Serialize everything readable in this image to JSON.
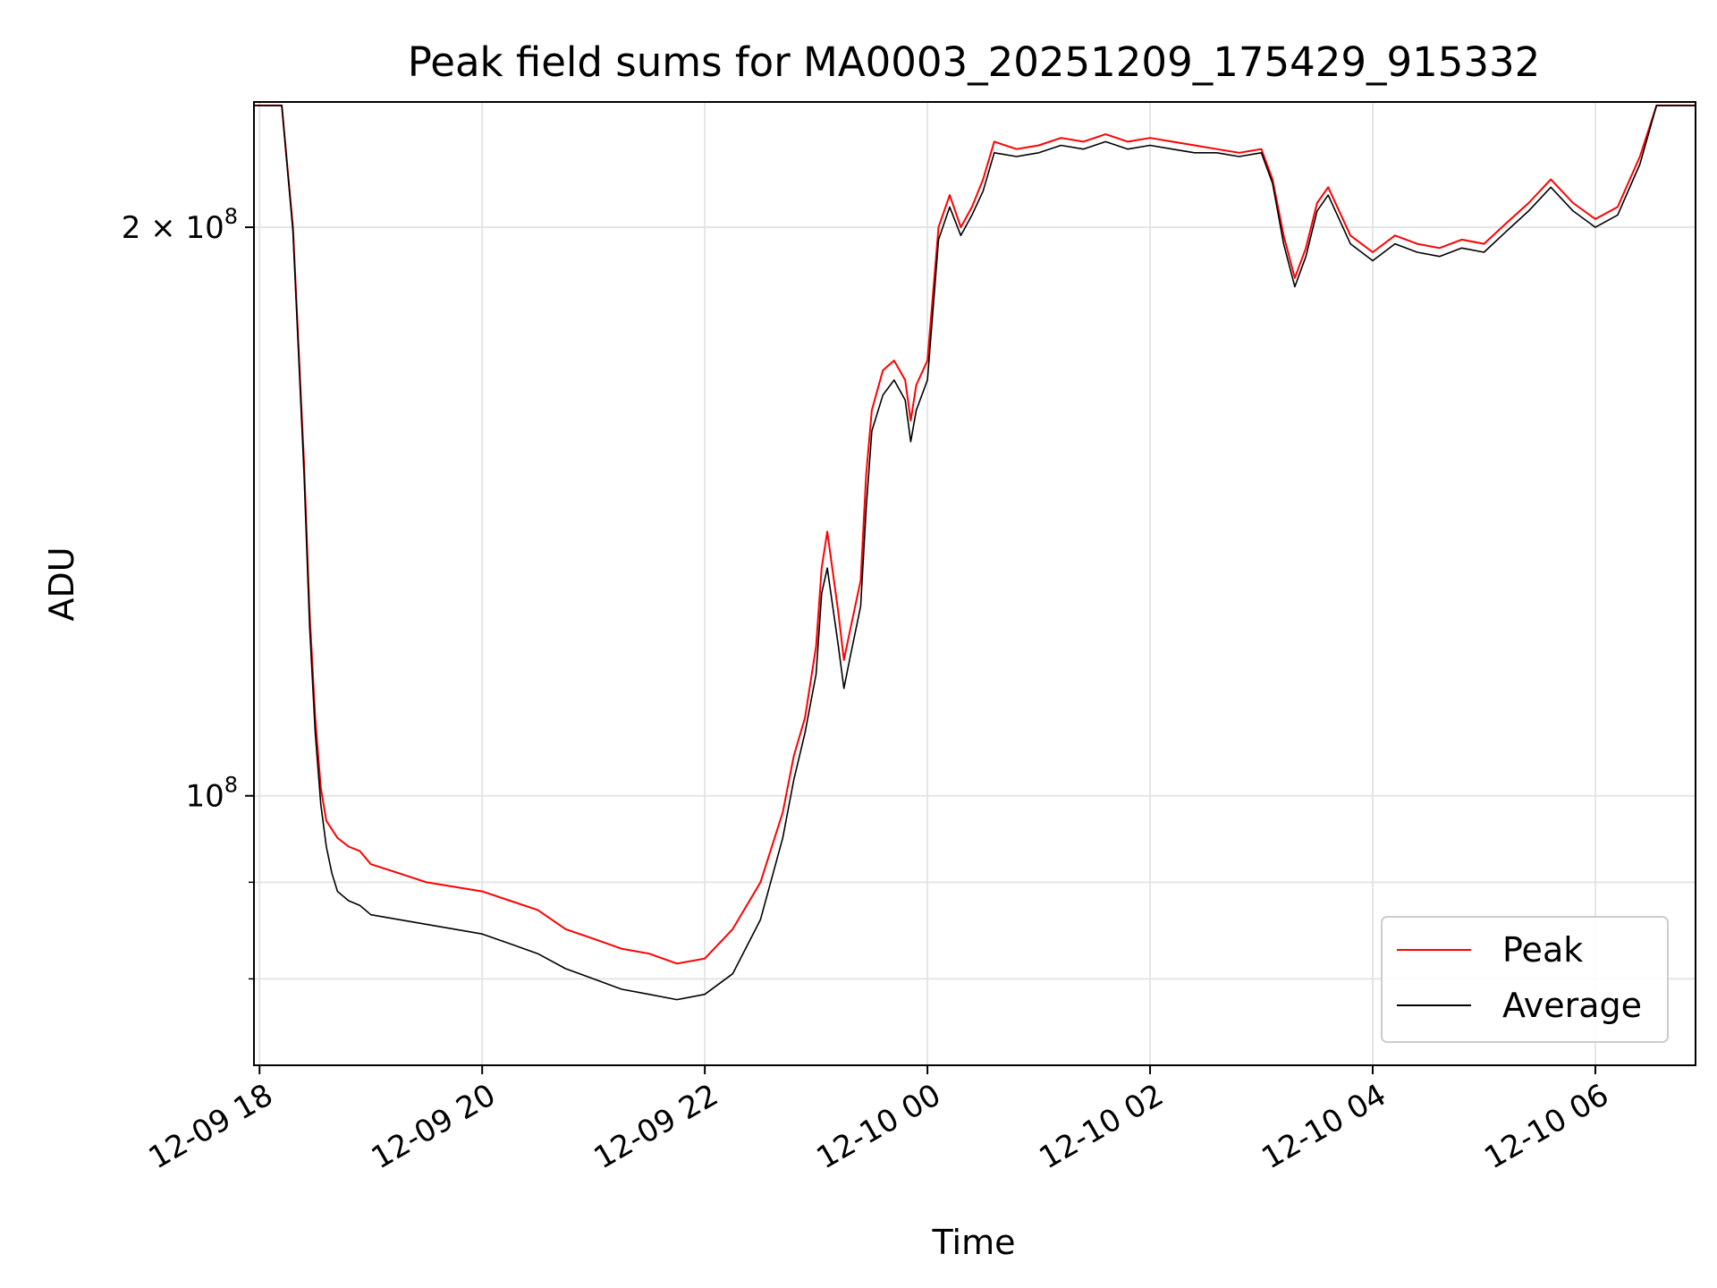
{
  "chart_data": {
    "type": "line",
    "title": "Peak field sums for MA0003_20251209_175429_915332",
    "xlabel": "Time",
    "ylabel": "ADU",
    "yscale": "log",
    "xlim": [
      17.95,
      30.9
    ],
    "ylim": [
      72000000,
      233000000
    ],
    "grid": true,
    "legend_position": "lower-right",
    "x_ticks": [
      {
        "value": 18,
        "label": "12-09 18"
      },
      {
        "value": 20,
        "label": "12-09 20"
      },
      {
        "value": 22,
        "label": "12-09 22"
      },
      {
        "value": 24,
        "label": "12-10 00"
      },
      {
        "value": 26,
        "label": "12-10 02"
      },
      {
        "value": 28,
        "label": "12-10 04"
      },
      {
        "value": 30,
        "label": "12-10 06"
      }
    ],
    "y_ticks": [
      {
        "value": 100000000,
        "base": "10",
        "exp": "8",
        "mantissa": ""
      },
      {
        "value": 200000000,
        "base": "10",
        "exp": "8",
        "mantissa": "2 × "
      }
    ],
    "y_minor_ticks": [
      80000000,
      90000000
    ],
    "x_unit_note": "hours from 2025-12-09 00:00",
    "series": [
      {
        "name": "Peak",
        "color": "#ff0000",
        "x": [
          17.95,
          18.1,
          18.2,
          18.3,
          18.4,
          18.45,
          18.5,
          18.55,
          18.6,
          18.65,
          18.7,
          18.8,
          18.9,
          19.0,
          19.25,
          19.5,
          19.75,
          20.0,
          20.25,
          20.5,
          20.75,
          21.0,
          21.25,
          21.5,
          21.75,
          22.0,
          22.25,
          22.5,
          22.7,
          22.8,
          22.9,
          23.0,
          23.05,
          23.1,
          23.2,
          23.25,
          23.3,
          23.4,
          23.45,
          23.5,
          23.6,
          23.7,
          23.8,
          23.85,
          23.9,
          24.0,
          24.1,
          24.2,
          24.3,
          24.4,
          24.5,
          24.6,
          24.8,
          25.0,
          25.2,
          25.4,
          25.6,
          25.8,
          26.0,
          26.2,
          26.4,
          26.6,
          26.8,
          27.0,
          27.1,
          27.2,
          27.3,
          27.4,
          27.5,
          27.6,
          27.8,
          28.0,
          28.2,
          28.4,
          28.6,
          28.8,
          29.0,
          29.2,
          29.4,
          29.6,
          29.8,
          30.0,
          30.2,
          30.4,
          30.55,
          30.7,
          30.9
        ],
        "values": [
          232000000,
          232000000,
          232000000,
          200000000,
          150000000,
          125000000,
          110000000,
          101000000,
          97000000,
          96000000,
          95000000,
          94000000,
          93500000,
          92000000,
          91000000,
          90000000,
          89500000,
          89000000,
          88000000,
          87000000,
          85000000,
          84000000,
          83000000,
          82500000,
          81500000,
          82000000,
          85000000,
          90000000,
          98000000,
          105000000,
          110000000,
          120000000,
          132000000,
          138000000,
          125000000,
          118000000,
          122000000,
          130000000,
          148000000,
          160000000,
          168000000,
          170000000,
          166000000,
          158000000,
          165000000,
          170000000,
          200000000,
          208000000,
          200000000,
          205000000,
          212000000,
          222000000,
          220000000,
          221000000,
          223000000,
          222000000,
          224000000,
          222000000,
          223000000,
          222000000,
          221000000,
          220000000,
          219000000,
          220000000,
          212000000,
          198000000,
          188000000,
          195000000,
          206000000,
          210000000,
          198000000,
          194000000,
          198000000,
          196000000,
          195000000,
          197000000,
          196000000,
          201000000,
          206000000,
          212000000,
          206000000,
          202000000,
          205000000,
          218000000,
          232000000,
          232000000,
          232000000
        ]
      },
      {
        "name": "Average",
        "color": "#000000",
        "x": [
          17.95,
          18.1,
          18.2,
          18.3,
          18.4,
          18.45,
          18.5,
          18.55,
          18.6,
          18.65,
          18.7,
          18.8,
          18.9,
          19.0,
          19.25,
          19.5,
          19.75,
          20.0,
          20.25,
          20.5,
          20.75,
          21.0,
          21.25,
          21.5,
          21.75,
          22.0,
          22.25,
          22.5,
          22.7,
          22.8,
          22.9,
          23.0,
          23.05,
          23.1,
          23.2,
          23.25,
          23.3,
          23.4,
          23.45,
          23.5,
          23.6,
          23.7,
          23.8,
          23.85,
          23.9,
          24.0,
          24.1,
          24.2,
          24.3,
          24.4,
          24.5,
          24.6,
          24.8,
          25.0,
          25.2,
          25.4,
          25.6,
          25.8,
          26.0,
          26.2,
          26.4,
          26.6,
          26.8,
          27.0,
          27.1,
          27.2,
          27.3,
          27.4,
          27.5,
          27.6,
          27.8,
          28.0,
          28.2,
          28.4,
          28.6,
          28.8,
          29.0,
          29.2,
          29.4,
          29.6,
          29.8,
          30.0,
          30.2,
          30.4,
          30.55,
          30.7,
          30.9
        ],
        "values": [
          232000000,
          232000000,
          232000000,
          199000000,
          148000000,
          123000000,
          108000000,
          99000000,
          94000000,
          91000000,
          89000000,
          88000000,
          87500000,
          86500000,
          86000000,
          85500000,
          85000000,
          84500000,
          83500000,
          82500000,
          81000000,
          80000000,
          79000000,
          78500000,
          78000000,
          78500000,
          80500000,
          86000000,
          95000000,
          102000000,
          108000000,
          116000000,
          128000000,
          132000000,
          120000000,
          114000000,
          118000000,
          126000000,
          142000000,
          156000000,
          163000000,
          166000000,
          162000000,
          154000000,
          160000000,
          166000000,
          197000000,
          205000000,
          198000000,
          203000000,
          209000000,
          219000000,
          218000000,
          219000000,
          221000000,
          220000000,
          222000000,
          220000000,
          221000000,
          220000000,
          219000000,
          219000000,
          218000000,
          219000000,
          211000000,
          196000000,
          186000000,
          193000000,
          204000000,
          208000000,
          196000000,
          192000000,
          196000000,
          194000000,
          193000000,
          195000000,
          194000000,
          199000000,
          204000000,
          210000000,
          204000000,
          200000000,
          203000000,
          216000000,
          232000000,
          232000000,
          232000000
        ]
      }
    ]
  }
}
